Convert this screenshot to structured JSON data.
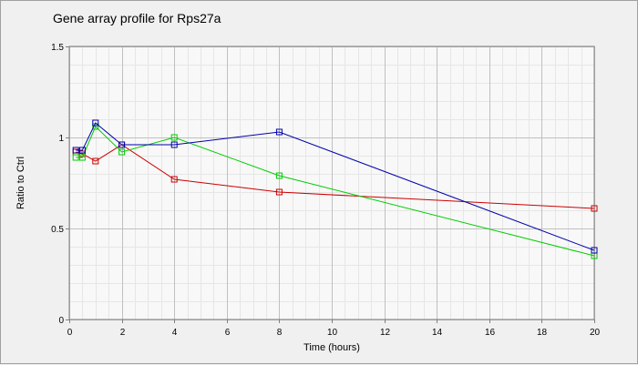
{
  "chart_data": {
    "type": "line",
    "title": "Gene array profile for Rps27a",
    "xlabel": "Time (hours)",
    "ylabel": "Ratio to Ctrl",
    "xlim": [
      0,
      20
    ],
    "ylim": [
      0,
      1.5
    ],
    "x_ticks": [
      0,
      2,
      4,
      6,
      8,
      10,
      12,
      14,
      16,
      18,
      20
    ],
    "x_tick_labels": [
      "0",
      "2",
      "4",
      "6",
      "8",
      "10",
      "12",
      "14",
      "16",
      "18",
      "20"
    ],
    "y_ticks": [
      0,
      0.5,
      1,
      1.5
    ],
    "y_tick_labels": [
      "0",
      "0.5",
      "1",
      "1.5"
    ],
    "grid": true,
    "legend": "none",
    "series": [
      {
        "color": "#cc0000",
        "marker": "square",
        "x": [
          0.25,
          0.5,
          1,
          2,
          4,
          8,
          20
        ],
        "values": [
          0.92,
          0.91,
          0.87,
          0.96,
          0.77,
          0.7,
          0.61
        ]
      },
      {
        "color": "#00cc00",
        "marker": "square",
        "x": [
          0.25,
          0.5,
          1,
          2,
          4,
          8,
          20
        ],
        "values": [
          0.89,
          0.89,
          1.06,
          0.92,
          1.0,
          0.79,
          0.35
        ]
      },
      {
        "color": "#0000aa",
        "marker": "square",
        "x": [
          0.25,
          0.5,
          1,
          2,
          4,
          8,
          20
        ],
        "values": [
          0.93,
          0.93,
          1.08,
          0.96,
          0.96,
          1.03,
          0.38
        ]
      }
    ]
  }
}
